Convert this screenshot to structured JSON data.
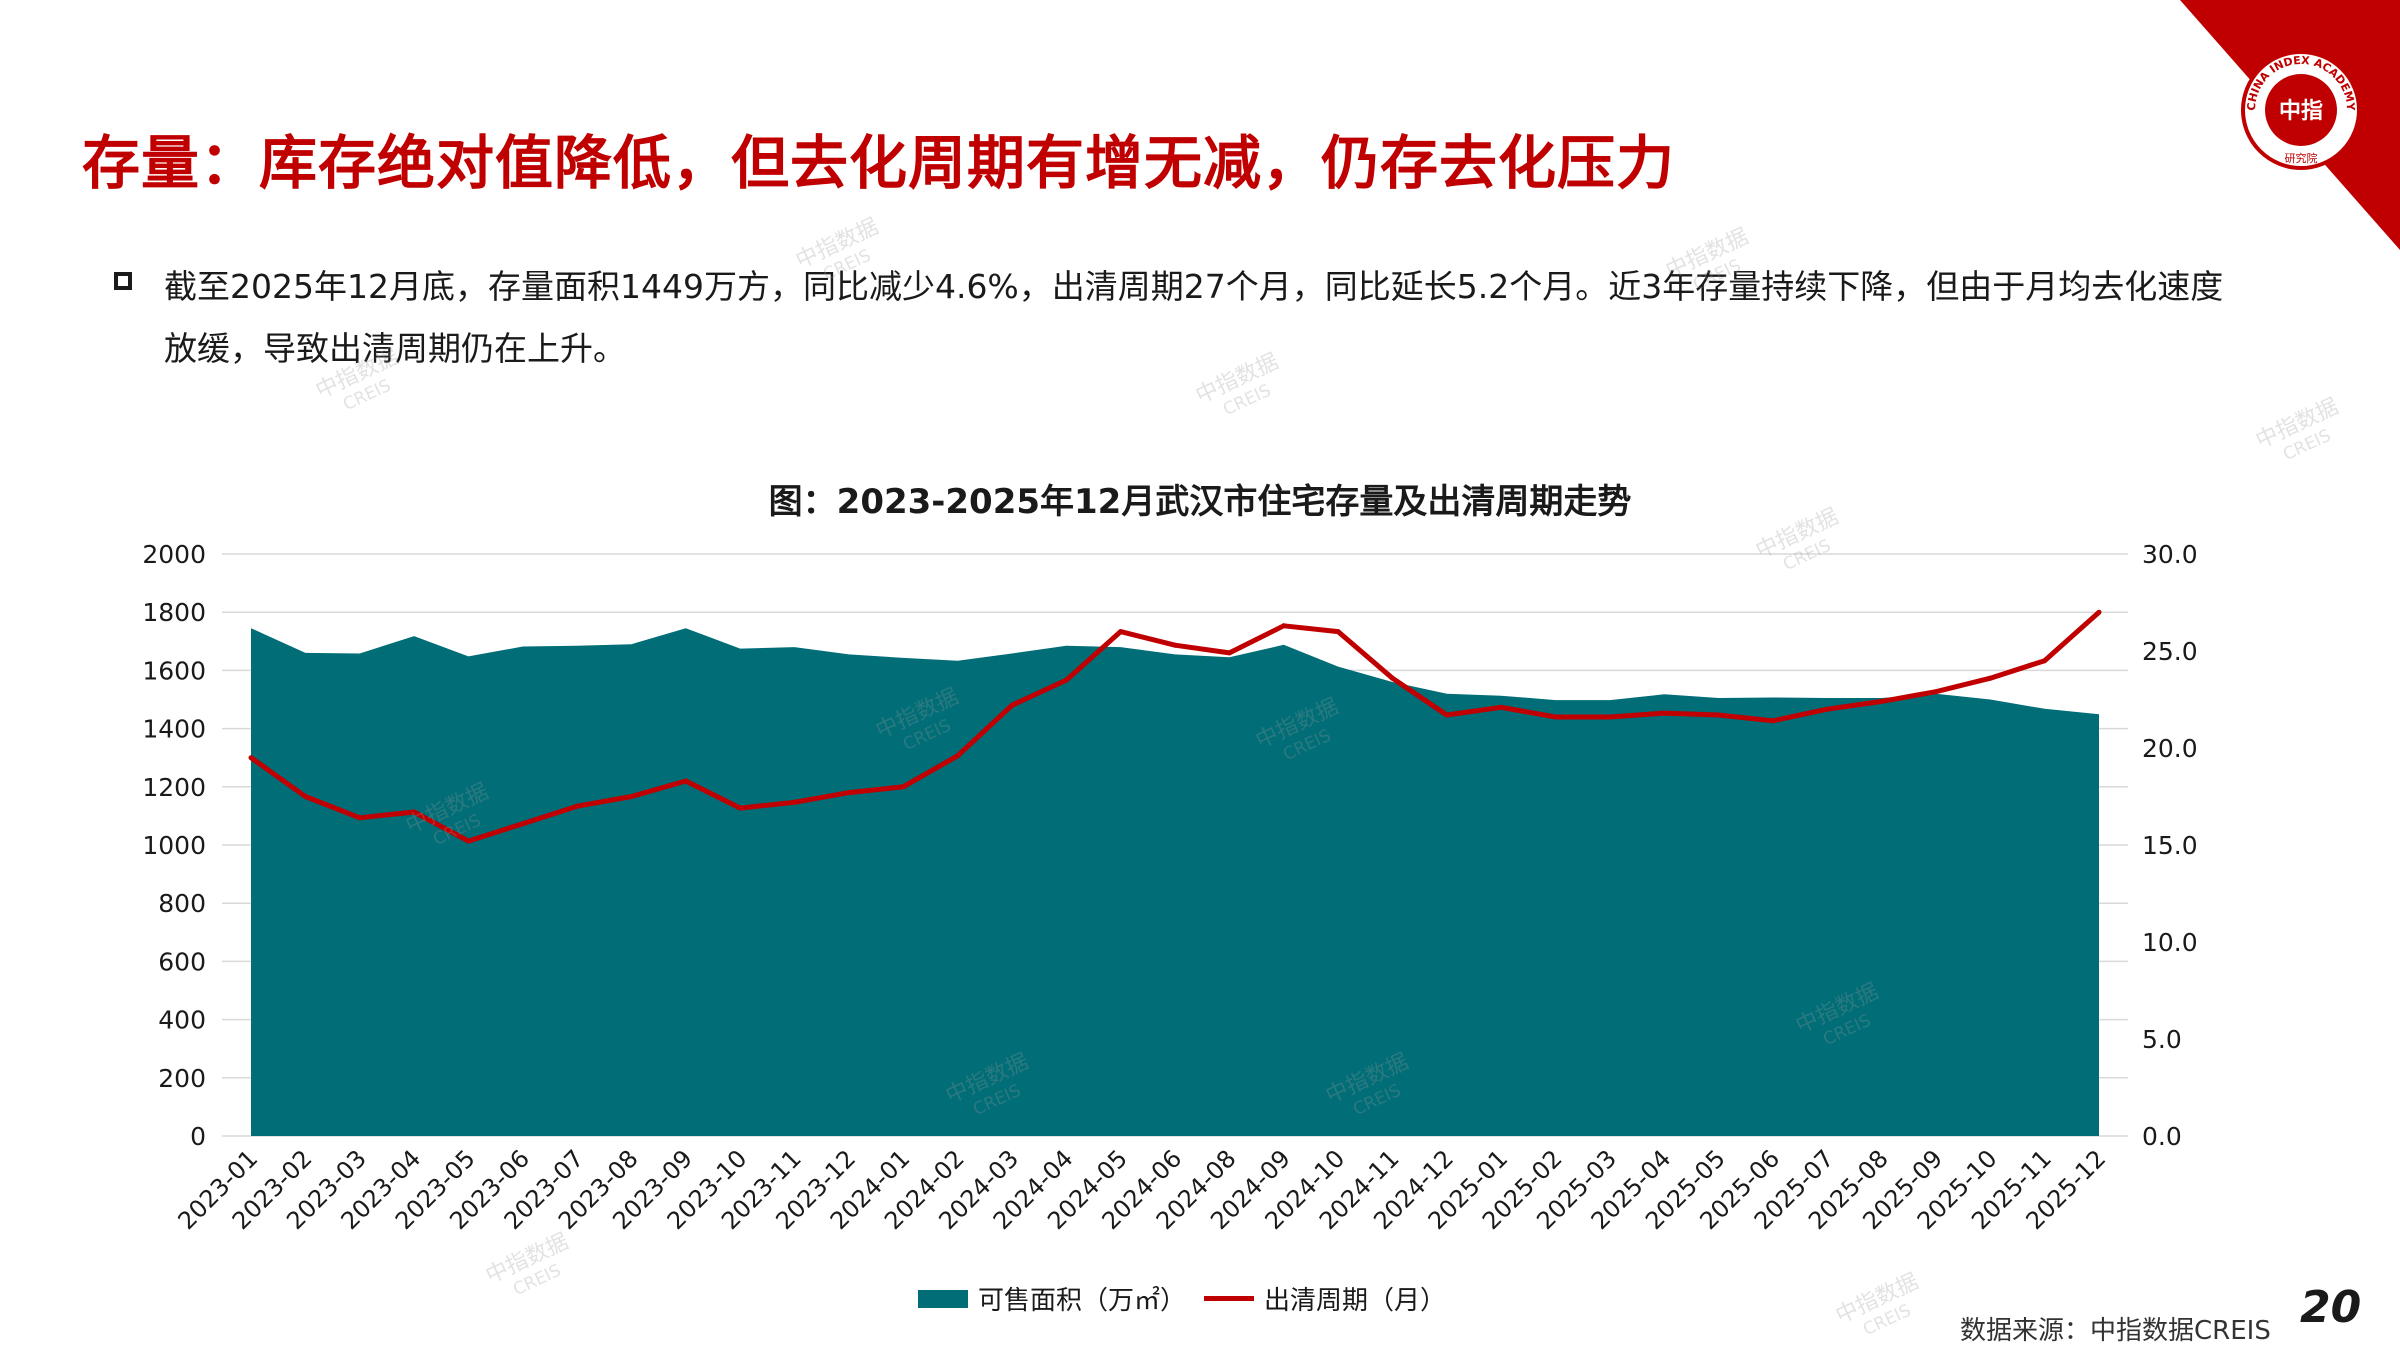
{
  "header": {
    "title": "存量：库存绝对值降低，但去化周期有增无减，仍存去化压力"
  },
  "summary": {
    "text": "截至2025年12月底，存量面积1449万方，同比减少4.6%，出清周期27个月，同比延长5.2个月。近3年存量持续下降，但由于月均去化速度放缓，导致出清周期仍在上升。"
  },
  "logo": {
    "ring_text": "CHINA INDEX ACADEMY",
    "center_text": "中指",
    "bottom_text": "研究院"
  },
  "chart_data": {
    "type": "area+line",
    "title": "图：2023-2025年12月武汉市住宅存量及出清周期走势",
    "categories": [
      "2023-01",
      "2023-02",
      "2023-03",
      "2023-04",
      "2023-05",
      "2023-06",
      "2023-07",
      "2023-08",
      "2023-09",
      "2023-10",
      "2023-11",
      "2023-12",
      "2024-01",
      "2024-02",
      "2024-03",
      "2024-04",
      "2024-05",
      "2024-06",
      "2024-08",
      "2024-09",
      "2024-10",
      "2024-11",
      "2024-12",
      "2025-01",
      "2025-02",
      "2025-03",
      "2025-04",
      "2025-05",
      "2025-06",
      "2025-07",
      "2025-08",
      "2025-09",
      "2025-10",
      "2025-11",
      "2025-12"
    ],
    "series": [
      {
        "name": "可售面积（万㎡）",
        "type": "area",
        "axis": "left",
        "color": "#006d77",
        "values": [
          1745,
          1660,
          1658,
          1718,
          1648,
          1682,
          1685,
          1690,
          1745,
          1675,
          1680,
          1655,
          1643,
          1633,
          1658,
          1685,
          1680,
          1655,
          1645,
          1688,
          1613,
          1560,
          1520,
          1513,
          1498,
          1498,
          1518,
          1505,
          1507,
          1505,
          1505,
          1520,
          1500,
          1468,
          1449
        ]
      },
      {
        "name": "出清周期（月）",
        "type": "line",
        "axis": "right",
        "color": "#c00000",
        "values": [
          19.5,
          17.5,
          16.4,
          16.7,
          15.2,
          16.1,
          17.0,
          17.5,
          18.3,
          16.9,
          17.2,
          17.7,
          18.0,
          19.6,
          22.2,
          23.5,
          26.0,
          25.3,
          24.9,
          26.3,
          26.0,
          23.6,
          21.7,
          22.1,
          21.6,
          21.6,
          21.8,
          21.7,
          21.4,
          22.0,
          22.4,
          22.9,
          23.6,
          24.5,
          27.0
        ]
      }
    ],
    "ylim_left": [
      0,
      2000
    ],
    "yticks_left": [
      "0",
      "200",
      "400",
      "600",
      "800",
      "1000",
      "1200",
      "1400",
      "1600",
      "1800",
      "2000"
    ],
    "ylim_right": [
      0,
      30
    ],
    "yticks_right": [
      "0.0",
      "5.0",
      "10.0",
      "15.0",
      "20.0",
      "25.0",
      "30.0"
    ],
    "grid": true,
    "legend_position": "bottom"
  },
  "legend": {
    "area_label": "可售面积（万㎡）",
    "line_label": "出清周期（月）"
  },
  "footer": {
    "source": "数据来源：中指数据CREIS",
    "page_number": "20"
  },
  "watermark": {
    "line1": "中指数据",
    "line2": "CREIS"
  }
}
